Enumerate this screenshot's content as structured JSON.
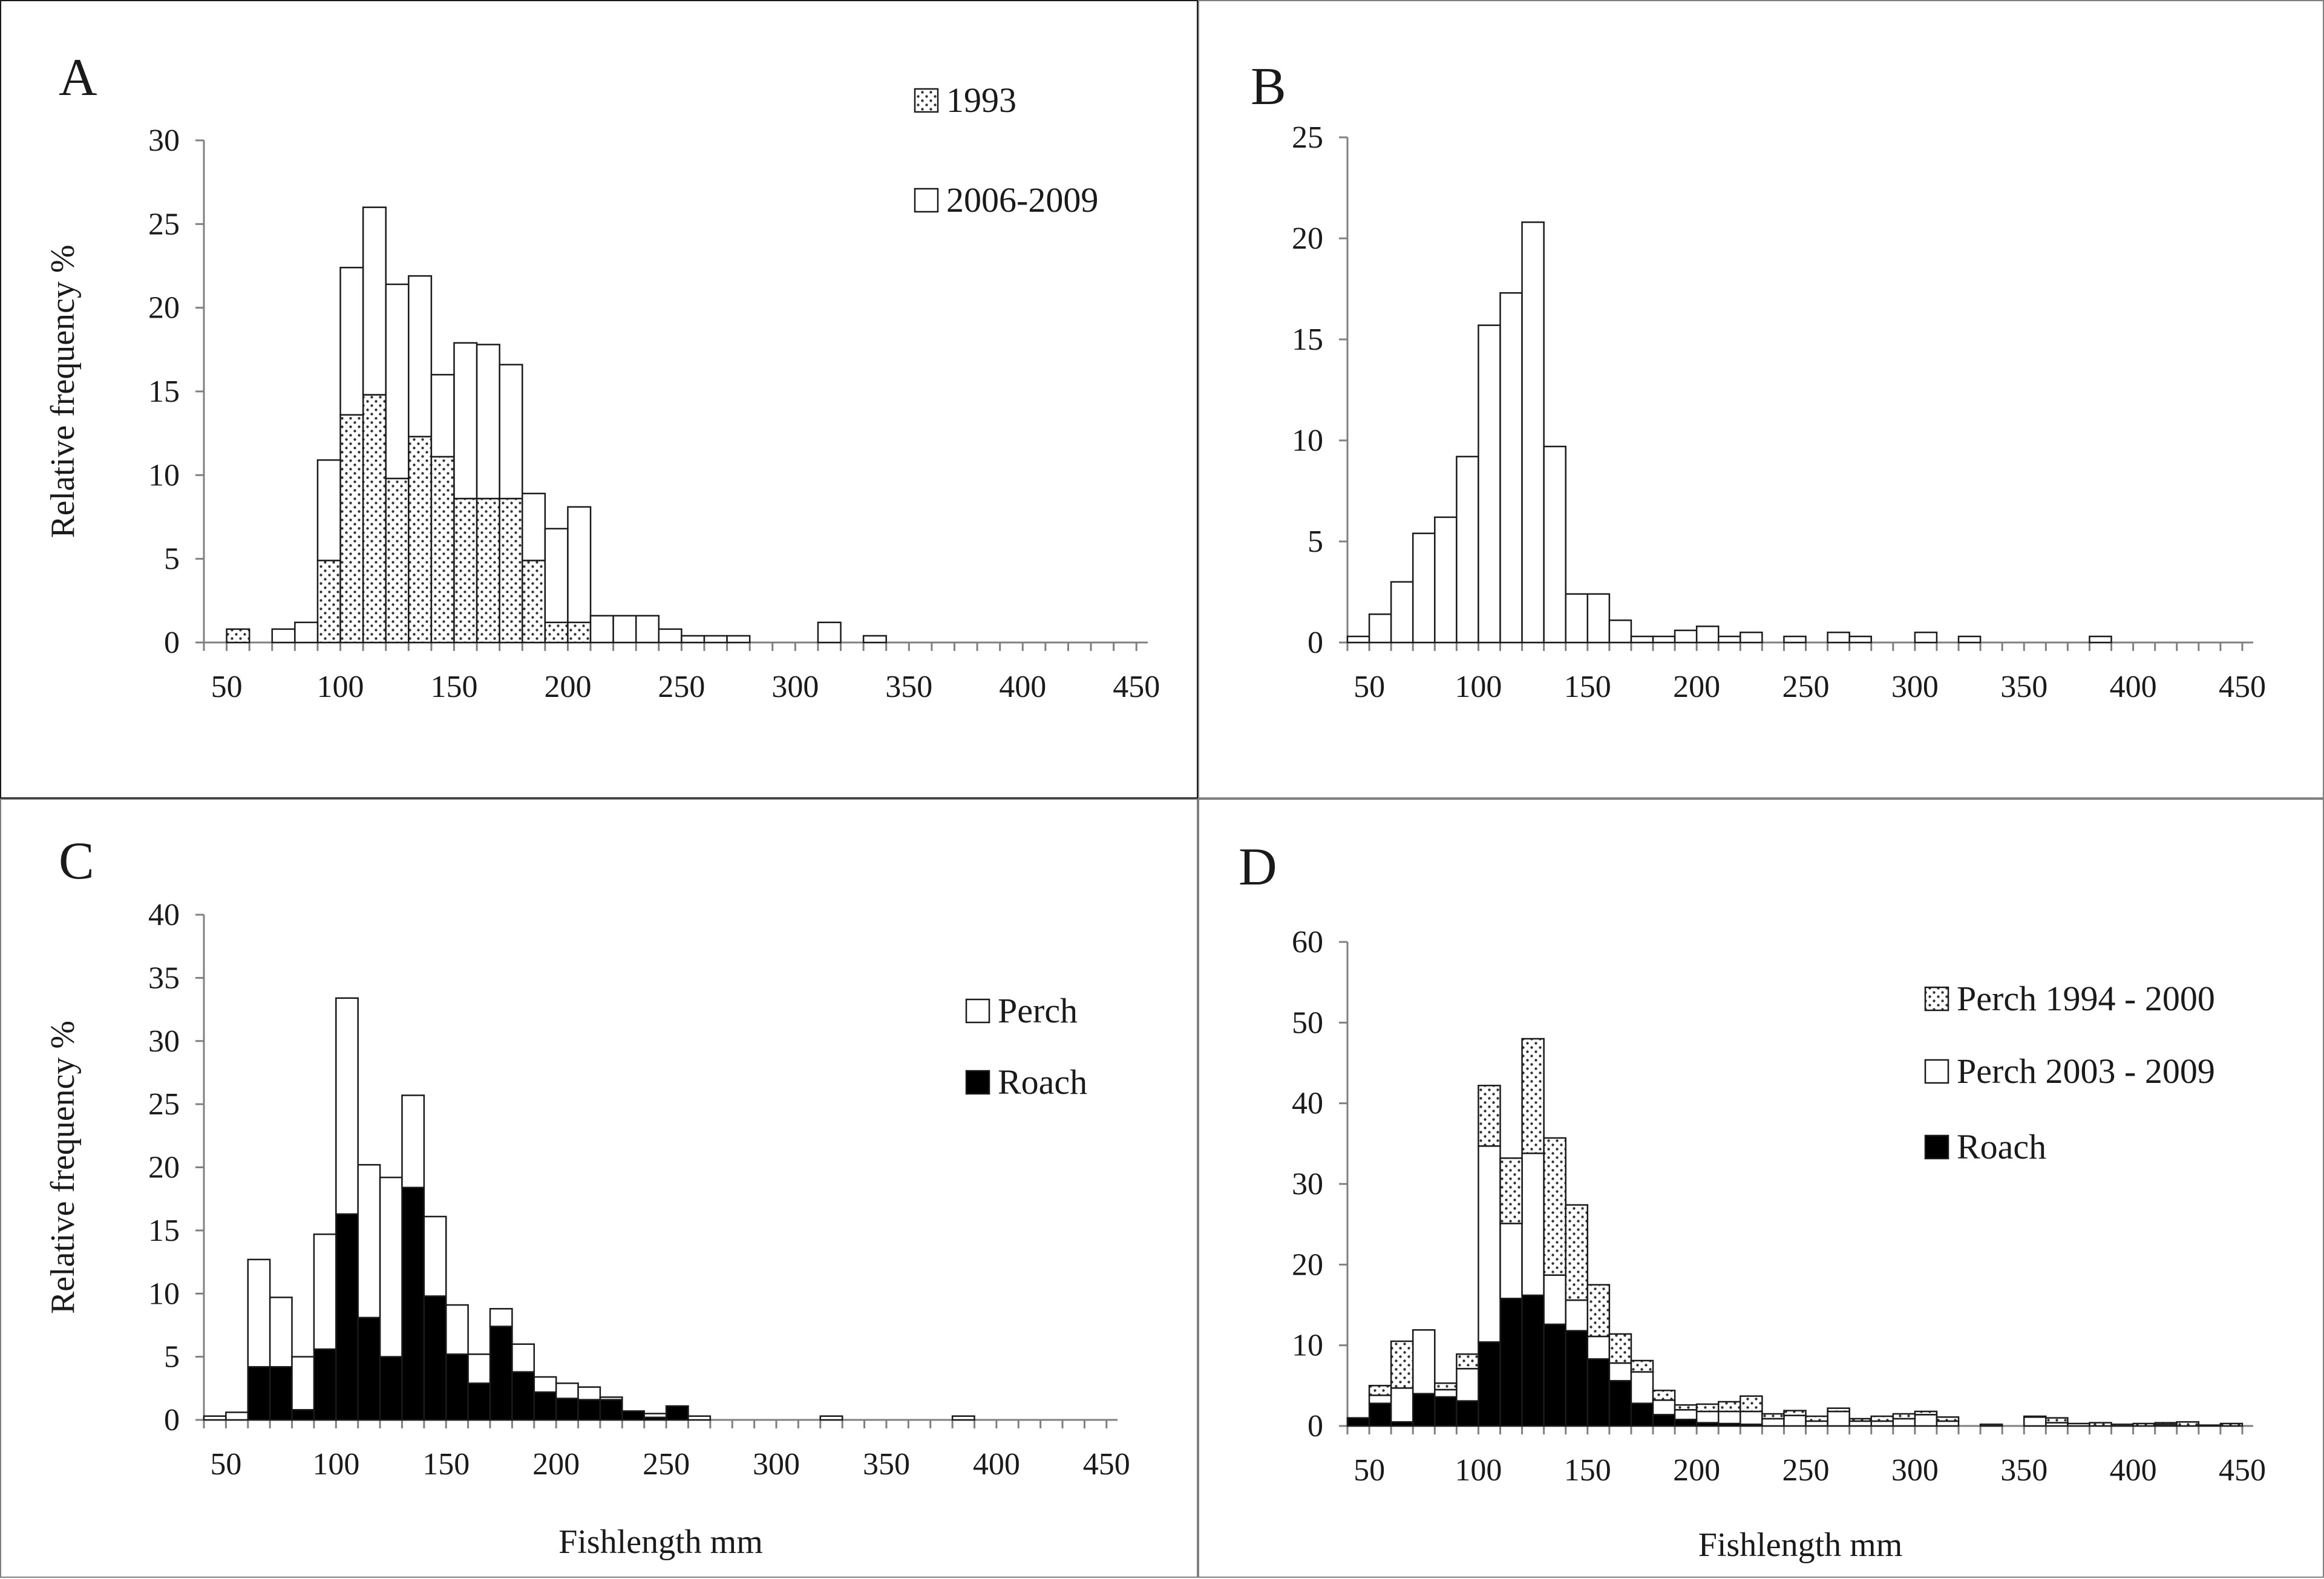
{
  "colors": {
    "axis": "#808080",
    "bar_stroke": "#1a1a1a",
    "white": "#ffffff",
    "black": "#000000",
    "dot": "#333333"
  },
  "chart_data": [
    {
      "panel": "A",
      "type": "bar",
      "stacked": true,
      "title": "",
      "xlabel": "",
      "ylabel": "Relative frequency %",
      "xlim": [
        50,
        450
      ],
      "ylim": [
        0,
        30
      ],
      "xticks": [
        50,
        100,
        150,
        200,
        250,
        300,
        350,
        400,
        450
      ],
      "yticks": [
        0,
        5,
        10,
        15,
        20,
        25,
        30
      ],
      "x_bin_starts": [
        40,
        50,
        60,
        70,
        80,
        90,
        100,
        110,
        120,
        130,
        140,
        150,
        160,
        170,
        180,
        190,
        200,
        210,
        220,
        230,
        240,
        250,
        260,
        270,
        280,
        290,
        300,
        310,
        320,
        330,
        340,
        350,
        360,
        370,
        380,
        390,
        400,
        410,
        420,
        430,
        440
      ],
      "series": [
        {
          "name": "1993",
          "pattern": "dots",
          "values": [
            0,
            0.8,
            0,
            0,
            0,
            4.9,
            13.6,
            14.8,
            9.8,
            12.3,
            11.1,
            8.6,
            8.6,
            8.6,
            4.9,
            1.2,
            1.2,
            0,
            0,
            0,
            0,
            0,
            0,
            0,
            0,
            0,
            0,
            0,
            0,
            0,
            0,
            0,
            0,
            0,
            0,
            0,
            0,
            0,
            0,
            0,
            0
          ]
        },
        {
          "name": "2006-2009",
          "pattern": "white",
          "values": [
            0,
            0,
            0,
            0.8,
            1.2,
            6.0,
            8.8,
            11.2,
            11.6,
            9.6,
            4.9,
            9.3,
            9.2,
            8.0,
            4.0,
            5.6,
            6.9,
            1.6,
            1.6,
            1.6,
            0.8,
            0.4,
            0.4,
            0.4,
            0,
            0,
            0,
            1.2,
            0,
            0.4,
            0,
            0,
            0,
            0,
            0,
            0,
            0,
            0,
            0,
            0,
            0
          ]
        }
      ]
    },
    {
      "panel": "B",
      "type": "bar",
      "stacked": false,
      "title": "",
      "xlabel": "",
      "ylabel": "",
      "xlim": [
        50,
        450
      ],
      "ylim": [
        0,
        25
      ],
      "xticks": [
        50,
        100,
        150,
        200,
        250,
        300,
        350,
        400,
        450
      ],
      "yticks": [
        0,
        5,
        10,
        15,
        20,
        25
      ],
      "x_bin_starts": [
        40,
        50,
        60,
        70,
        80,
        90,
        100,
        110,
        120,
        130,
        140,
        150,
        160,
        170,
        180,
        190,
        200,
        210,
        220,
        230,
        240,
        250,
        260,
        270,
        280,
        290,
        300,
        310,
        320,
        330,
        340,
        350,
        360,
        370,
        380,
        390,
        400,
        410,
        420,
        430,
        440
      ],
      "series": [
        {
          "name": "",
          "pattern": "white",
          "values": [
            0.3,
            1.4,
            3.0,
            5.4,
            6.2,
            9.2,
            15.7,
            17.3,
            20.8,
            9.7,
            2.4,
            2.4,
            1.1,
            0.3,
            0.3,
            0.6,
            0.8,
            0.3,
            0.5,
            0,
            0.3,
            0,
            0.5,
            0.3,
            0,
            0,
            0.5,
            0,
            0.3,
            0,
            0,
            0,
            0,
            0,
            0.3,
            0,
            0,
            0,
            0,
            0,
            0
          ]
        }
      ]
    },
    {
      "panel": "C",
      "type": "bar",
      "stacked": true,
      "title": "",
      "xlabel": "Fishlength mm",
      "ylabel": "Relative frequency %",
      "xlim": [
        50,
        450
      ],
      "ylim": [
        0,
        40
      ],
      "xticks": [
        50,
        100,
        150,
        200,
        250,
        300,
        350,
        400,
        450
      ],
      "yticks": [
        0,
        5,
        10,
        15,
        20,
        25,
        30,
        35,
        40
      ],
      "x_bin_starts": [
        40,
        50,
        60,
        70,
        80,
        90,
        100,
        110,
        120,
        130,
        140,
        150,
        160,
        170,
        180,
        190,
        200,
        210,
        220,
        230,
        240,
        250,
        260,
        270,
        280,
        290,
        300,
        310,
        320,
        330,
        340,
        350,
        360,
        370,
        380,
        390,
        400,
        410,
        420,
        430,
        440
      ],
      "series": [
        {
          "name": "Roach",
          "pattern": "black",
          "values": [
            0,
            0,
            4.2,
            4.2,
            0.8,
            5.6,
            16.3,
            8.1,
            5.0,
            18.4,
            9.8,
            5.2,
            2.9,
            7.4,
            3.8,
            2.2,
            1.7,
            1.6,
            1.6,
            0.7,
            0.2,
            1.1,
            0,
            0,
            0,
            0,
            0,
            0,
            0,
            0,
            0,
            0,
            0,
            0,
            0,
            0,
            0,
            0,
            0,
            0,
            0
          ]
        },
        {
          "name": "Perch",
          "pattern": "white",
          "values": [
            0.3,
            0.6,
            8.5,
            5.5,
            4.2,
            9.1,
            17.1,
            12.1,
            14.2,
            7.3,
            6.3,
            3.9,
            2.3,
            1.4,
            2.2,
            1.2,
            1.2,
            1.0,
            0.2,
            0,
            0.3,
            0,
            0.3,
            0,
            0,
            0,
            0,
            0,
            0.3,
            0,
            0,
            0,
            0,
            0,
            0.3,
            0,
            0,
            0,
            0,
            0,
            0
          ]
        }
      ]
    },
    {
      "panel": "D",
      "type": "bar",
      "stacked": true,
      "title": "",
      "xlabel": "Fishlength mm",
      "ylabel": "",
      "xlim": [
        50,
        450
      ],
      "ylim": [
        0,
        60
      ],
      "xticks": [
        50,
        100,
        150,
        200,
        250,
        300,
        350,
        400,
        450
      ],
      "yticks": [
        0,
        10,
        20,
        30,
        40,
        50,
        60
      ],
      "x_bin_starts": [
        40,
        50,
        60,
        70,
        80,
        90,
        100,
        110,
        120,
        130,
        140,
        150,
        160,
        170,
        180,
        190,
        200,
        210,
        220,
        230,
        240,
        250,
        260,
        270,
        280,
        290,
        300,
        310,
        320,
        330,
        340,
        350,
        360,
        370,
        380,
        390,
        400,
        410,
        420,
        430,
        440
      ],
      "series": [
        {
          "name": "Roach",
          "pattern": "black",
          "values": [
            1.0,
            2.8,
            0.5,
            4.0,
            3.6,
            3.1,
            10.4,
            15.8,
            16.2,
            12.6,
            11.8,
            8.3,
            5.6,
            2.8,
            1.4,
            0.8,
            0.4,
            0.3,
            0.2,
            0,
            0,
            0,
            0,
            0,
            0,
            0,
            0,
            0,
            0,
            0,
            0,
            0,
            0,
            0,
            0,
            0,
            0,
            0,
            0,
            0,
            0
          ]
        },
        {
          "name": "Perch 2003 - 2009",
          "pattern": "white",
          "values": [
            0,
            1.0,
            4.2,
            7.9,
            0.9,
            4.0,
            24.3,
            9.3,
            17.6,
            6.1,
            3.8,
            2.8,
            2.2,
            3.9,
            1.8,
            1.2,
            1.4,
            1.5,
            1.6,
            0.9,
            1.3,
            0.6,
            1.8,
            0.6,
            0.6,
            0.9,
            1.4,
            0.6,
            0,
            0.2,
            0,
            1.1,
            0.4,
            0.3,
            0,
            0.2,
            0,
            0.2,
            0,
            0.1,
            0
          ]
        },
        {
          "name": "Perch 1994 - 2000",
          "pattern": "dots",
          "values": [
            0,
            1.2,
            5.8,
            0,
            0.8,
            1.8,
            7.5,
            8.1,
            14.2,
            17.0,
            11.8,
            6.4,
            3.6,
            1.4,
            1.2,
            0.6,
            0.9,
            1.2,
            1.9,
            0.6,
            0.6,
            0.6,
            0.4,
            0.3,
            0.6,
            0.6,
            0.4,
            0.5,
            0,
            0,
            0,
            0.1,
            0.6,
            0,
            0.4,
            0,
            0.3,
            0.2,
            0.5,
            0,
            0.3
          ]
        }
      ]
    }
  ],
  "panels": {
    "a": {
      "letter": "A",
      "legend": [
        "1993",
        "2006-2009"
      ]
    },
    "b": {
      "letter": "B"
    },
    "c": {
      "letter": "C",
      "legend": [
        "Perch",
        "Roach"
      ]
    },
    "d": {
      "letter": "D",
      "legend": [
        "Perch 1994 - 2000",
        "Perch 2003 - 2009",
        "Roach"
      ]
    }
  }
}
